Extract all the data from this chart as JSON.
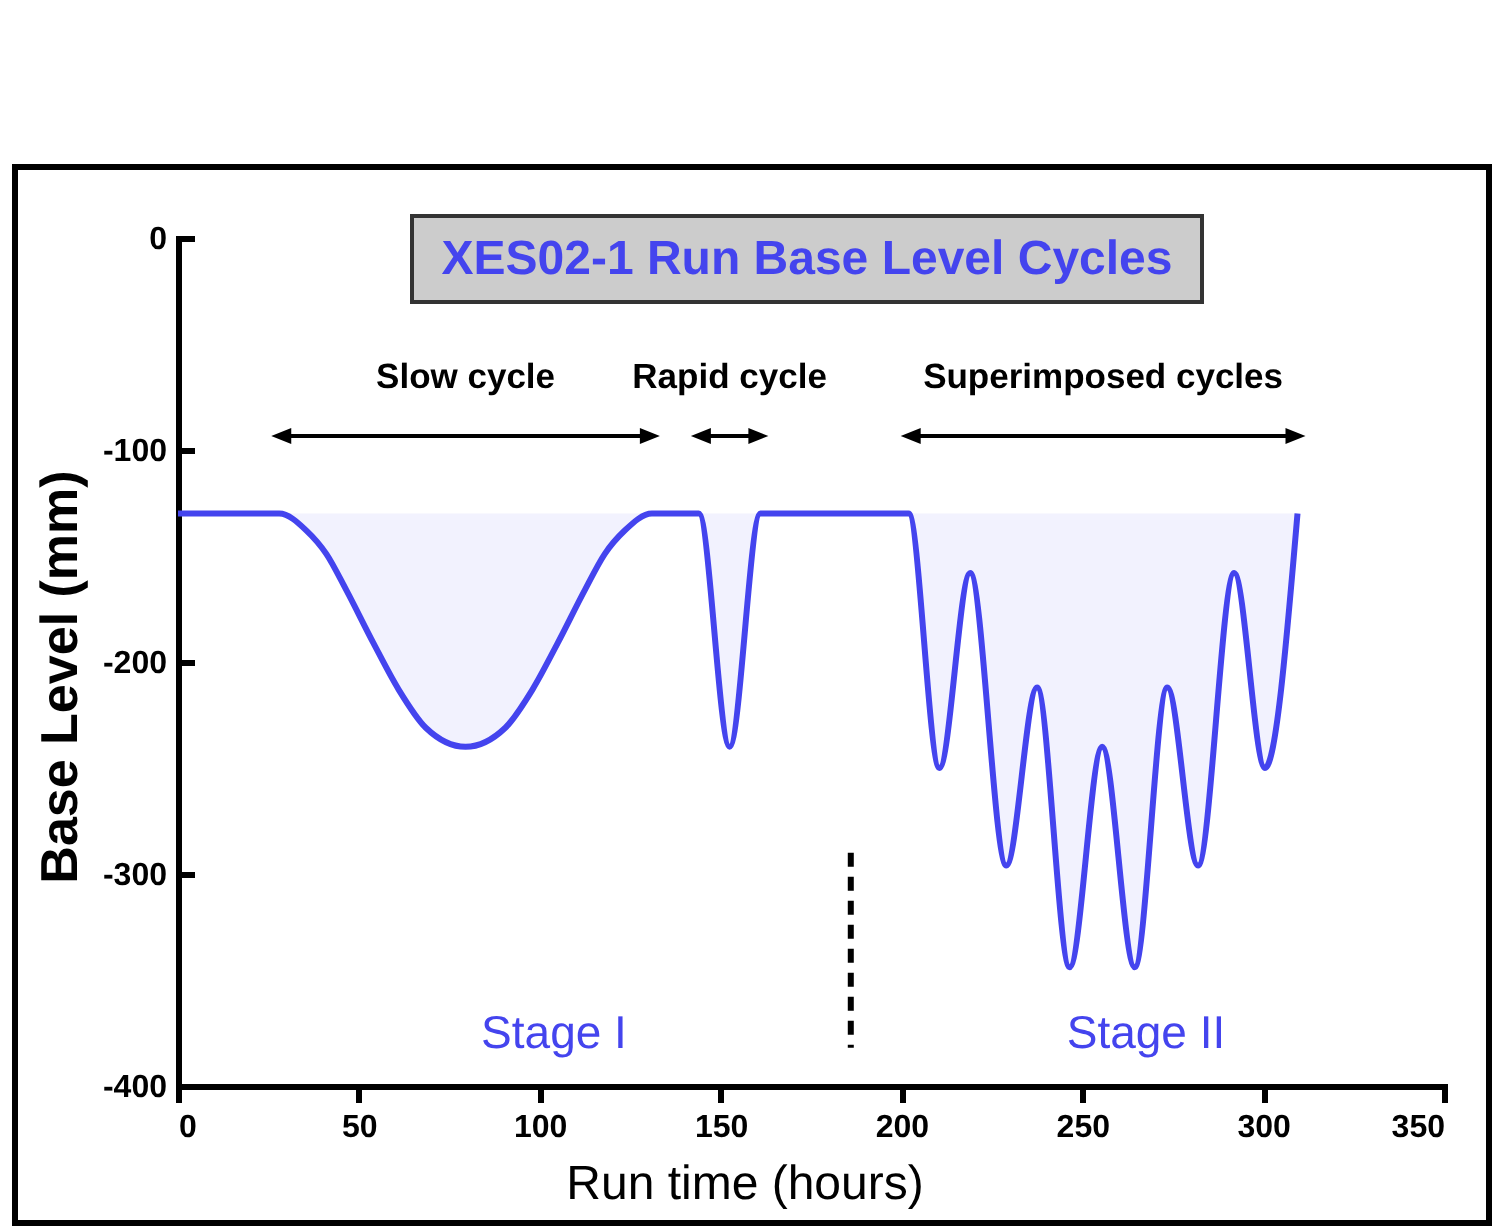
{
  "chart_data": {
    "type": "line",
    "title": "XES02-1 Run Base Level Cycles",
    "xlabel": "Run time (hours)",
    "ylabel": "Base Level (mm)",
    "xlim": [
      0,
      350
    ],
    "xticks": [
      0,
      50,
      100,
      150,
      200,
      250,
      300,
      350
    ],
    "ylim": [
      -400,
      0
    ],
    "yticks": [
      -400,
      -300,
      -200,
      -100,
      0
    ],
    "series": [
      {
        "color": "#4444ee",
        "x": [
          0,
          28,
          35.5,
          41,
          46.5,
          54,
          61,
          68.5,
          79.5,
          90.5,
          98,
          105,
          112.5,
          118,
          123.5,
          131,
          144,
          152.5,
          161,
          202,
          210.5,
          219,
          229,
          237.5,
          246.5,
          255.5,
          264.5,
          273.5,
          282,
          292,
          300.5,
          309.5
        ],
        "values": [
          -130,
          -130,
          -138,
          -149,
          -166,
          -191,
          -213,
          -231,
          -240,
          -231,
          -213,
          -191,
          -166,
          -149,
          -138,
          -130,
          -130,
          -240,
          -130,
          -130,
          -250,
          -158,
          -296,
          -212,
          -344,
          -240,
          -344,
          -212,
          -296,
          -158,
          -250,
          -130
        ],
        "lower": [
          -130,
          -130,
          -138,
          -149,
          -166,
          -191,
          -213,
          -231,
          -240,
          -231,
          -213,
          -191,
          -166,
          -149,
          -138,
          -130,
          -130,
          -240,
          -130,
          -130,
          -250,
          -158,
          -296,
          -212,
          -344,
          -240,
          -344,
          -212,
          -296,
          -158,
          -250,
          -130
        ],
        "upper": [
          -130,
          -130,
          -130,
          -130,
          -130,
          -130,
          -130,
          -130,
          -130,
          -130,
          -130,
          -130,
          -130,
          -130,
          -130,
          -130,
          -130,
          -130,
          -130,
          -130,
          -130,
          -130,
          -130,
          -130,
          -130,
          -130,
          -130,
          -130,
          -130,
          -130,
          -130,
          -130
        ]
      },
      {
        "color": "#000000",
        "x": [
          186,
          186
        ],
        "values": [
          -290,
          -382
        ],
        "line_style": "dashed"
      }
    ],
    "annotations": [
      "Slow cycle",
      "Rapid cycle",
      "Superimposed cycles",
      "Stage I",
      "Stage II"
    ]
  }
}
